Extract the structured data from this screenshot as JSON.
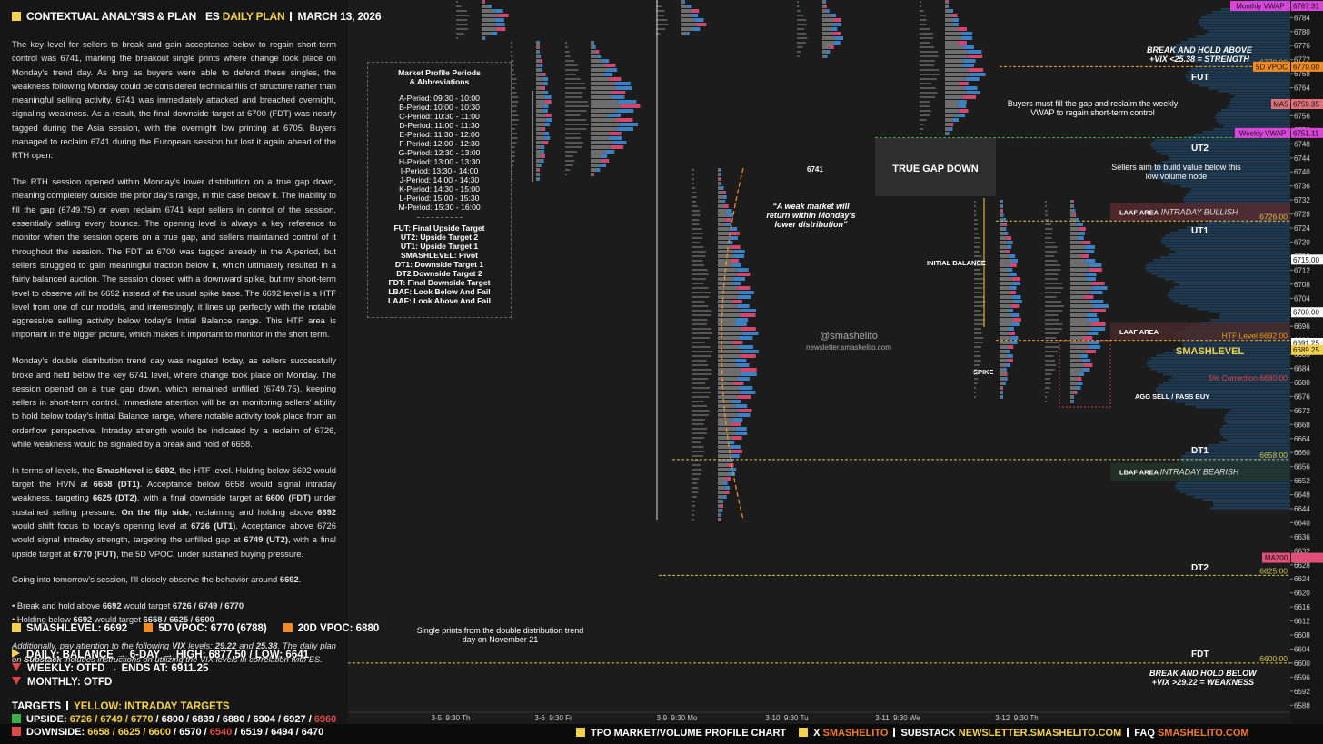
{
  "header": {
    "title": "CONTEXTUAL ANALYSIS & PLAN",
    "plan_prefix": "ES",
    "plan_label": "DAILY PLAN",
    "date": "MARCH 13, 2026"
  },
  "analysis": {
    "paragraphs": [
      [
        {
          "t": "The key level for sellers to break and gain acceptance below to regain short-term control was 6741, marking the breakout single prints where change took place on Monday's trend day. As long as buyers were able to defend these singles, the weakness following Monday could be considered technical fills of structure rather than meaningful selling activity. 6741 was immediately attacked and breached overnight, signaling weakness. As a result, the final downside target at 6700 (FDT) was nearly tagged during the Asia session, with the overnight low printing at 6705. Buyers managed to reclaim 6741 during the European session but lost it again ahead of the RTH open."
        }
      ],
      [
        {
          "t": "The RTH session opened within Monday's lower distribution on a true gap down, meaning completely outside the prior day's range, in this case below it. The inability to fill the gap (6749.75) or even reclaim 6741 kept sellers in control of the session, essentially selling every bounce. The opening level is always a key reference to monitor when the session opens on a true gap, and sellers maintained control of it throughout the session. The FDT at 6700 was tagged already in the A-period, but sellers struggled to gain meaningful traction below it, which ultimately resulted in a fairly balanced auction. The session closed with a downward spike, but my short-term level to observe will be 6692 instead of the usual spike base. The 6692 level is a HTF level from one of our models, and interestingly, it lines up perfectly with the notable aggressive selling activity below today's Initial Balance range. This HTF area is important in the bigger picture, which makes it important to monitor in the short term."
        }
      ],
      [
        {
          "t": "Monday's double distribution trend day was negated today, as sellers successfully broke and held below the key 6741 level, where change took place on Monday. The session opened on a true gap down, which remained unfilled (6749.75), keeping sellers in short-term control. Immediate attention will be on monitoring sellers' ability to hold below today's Initial Balance range, where notable activity took place from an orderflow perspective. Intraday strength would be indicated by a reclaim of 6726, while weakness would be signaled by a break and hold of 6658."
        }
      ],
      [
        {
          "t": "In terms of levels, the "
        },
        {
          "t": "Smashlevel",
          "b": true
        },
        {
          "t": " is "
        },
        {
          "t": "6692",
          "b": true
        },
        {
          "t": ", the HTF level. Holding below 6692 would target the HVN at "
        },
        {
          "t": "6658 (DT1)",
          "b": true
        },
        {
          "t": ". Acceptance below 6658 would signal intraday weakness, targeting "
        },
        {
          "t": "6625 (DT2)",
          "b": true
        },
        {
          "t": ", with a final downside target at "
        },
        {
          "t": "6600 (FDT)",
          "b": true
        },
        {
          "t": " under sustained selling pressure. "
        },
        {
          "t": "On the flip side",
          "b": true
        },
        {
          "t": ", reclaiming and holding above "
        },
        {
          "t": "6692",
          "b": true
        },
        {
          "t": " would shift focus to today's opening level at "
        },
        {
          "t": "6726 (UT1)",
          "b": true
        },
        {
          "t": ". Acceptance above 6726 would signal intraday strength, targeting the unfilled gap at "
        },
        {
          "t": "6749 (UT2)",
          "b": true
        },
        {
          "t": ", with a final upside target at "
        },
        {
          "t": "6770 (FUT)",
          "b": true
        },
        {
          "t": ", the 5D VPOC, under sustained buying pressure."
        }
      ],
      [
        {
          "t": "Going into tomorrow's session, I'll closely observe the behavior around "
        },
        {
          "t": "6692",
          "b": true
        },
        {
          "t": "."
        }
      ]
    ],
    "bullets": [
      [
        {
          "t": "• Break and hold above "
        },
        {
          "t": "6692",
          "b": true
        },
        {
          "t": " would target "
        },
        {
          "t": "6726 / 6749 / 6770",
          "b": true
        }
      ],
      [
        {
          "t": "• Holding below "
        },
        {
          "t": "6692",
          "b": true
        },
        {
          "t": " would target "
        },
        {
          "t": "6658 / 6625 / 6600",
          "b": true
        }
      ]
    ],
    "note": [
      {
        "t": "Additionally, pay attention to the following "
      },
      {
        "t": "VIX",
        "b": true
      },
      {
        "t": " levels: "
      },
      {
        "t": "29.22",
        "b": true
      },
      {
        "t": " and "
      },
      {
        "t": "25.38",
        "b": true
      },
      {
        "t": ". The daily plan on "
      },
      {
        "t": "Substack",
        "b": true
      },
      {
        "t": " includes instructions on utilizing the VIX levels in correlation with ES."
      }
    ]
  },
  "summary": {
    "levels": [
      {
        "t": "SMASHLEVEL: 6692",
        "c": "#f5d24a"
      },
      {
        "t": "5D VPOC: 6770 (6788)",
        "c": "#f08a24"
      },
      {
        "t": "20D VPOC: 6880",
        "c": "#f08a24"
      }
    ],
    "trend": [
      {
        "t": "DAILY: BALANCE → 6-DAY → HIGH: 6877.50 / LOW: 6641",
        "c": "#f5d24a"
      },
      {
        "t": "WEEKLY: OTFD → ENDS AT: 6911.25",
        "c": "#e04848"
      },
      {
        "t": "MONTHLY: OTFD",
        "c": "#e04848"
      }
    ],
    "targets_title": "TARGETS",
    "targets_note": "YELLOW: INTRADAY TARGETS",
    "upside": {
      "label": "UPSIDE:",
      "color": "#3fae49",
      "parts": [
        {
          "t": "6726 / 6749 / 6770",
          "c": "#f5d24a"
        },
        {
          "t": " / 6800 / 6839 / 6880 / 6904 / 6927 / ",
          "c": "#ffffff"
        },
        {
          "t": "6960",
          "c": "#e04848"
        }
      ]
    },
    "downside": {
      "label": "DOWNSIDE:",
      "color": "#e04848",
      "parts": [
        {
          "t": "6658 / 6625 / 6600",
          "c": "#f5d24a"
        },
        {
          "t": " / 6570 / ",
          "c": "#ffffff"
        },
        {
          "t": "6540",
          "c": "#e04848"
        },
        {
          "t": " / 6519 / 6494 / 6470",
          "c": "#ffffff"
        }
      ]
    }
  },
  "legend": {
    "title": [
      "Market Profile Periods",
      "& Abbreviations"
    ],
    "periods": [
      "A-Period: 09:30 - 10:00",
      "B-Period: 10:00 - 10:30",
      "C-Period: 10:30 - 11:00",
      "D-Period: 11:00 - 11:30",
      "E-Period: 11:30 - 12:00",
      "F-Period: 12:00 - 12:30",
      "G-Period: 12:30 - 13:00",
      "H-Period: 13:00 - 13:30",
      "I-Period: 13:30 - 14:00",
      "J-Period: 14:00 - 14:30",
      "K-Period: 14:30 - 15:00",
      "L-Period: 15:00 - 15:30",
      "M-Period: 15:30 - 16:00"
    ],
    "abbreviations": [
      "FUT: Final Upside Target",
      "UT2: Upside Target 2",
      "UT1: Upside Target 1",
      "SMASHLEVEL: Pivot",
      "DT1: Downside Target 1",
      "DT2 Downside Target 2",
      "FDT: Final Downside Target",
      "LBAF: Look Below And Fail",
      "LAAF: Look Above And Fail"
    ]
  },
  "chart": {
    "ylim": [
      6586,
      6789
    ],
    "yticks": [
      6588,
      6592,
      6596,
      6600,
      6604,
      6608,
      6612,
      6616,
      6620,
      6624,
      6628,
      6632,
      6636,
      6640,
      6644,
      6648,
      6652,
      6656,
      6660,
      6664,
      6668,
      6672,
      6676,
      6680,
      6684,
      6688,
      6692,
      6696,
      6700,
      6704,
      6708,
      6712,
      6716,
      6720,
      6724,
      6728,
      6732,
      6736,
      6740,
      6744,
      6748,
      6752,
      6756,
      6760,
      6764,
      6768,
      6772,
      6776,
      6780,
      6784
    ],
    "dates": [
      "3-5  9:30 Th",
      "3-6  9:30 Fr",
      "3-9  9:30 Mo",
      "3-10  9:30 Tu",
      "3-11  9:30 We",
      "3-12  9:30 Th"
    ],
    "levels": [
      {
        "value": 6770,
        "label": "6770.00",
        "color": "#f0a020"
      },
      {
        "name": "Gap",
        "value": 6749.75,
        "color": "#4caf50"
      },
      {
        "value": 6726,
        "label": "6726.00",
        "color": "#d4c24a"
      },
      {
        "name": "HTF Level",
        "value": 6692,
        "label": "6692.00",
        "color": "#e8a020"
      },
      {
        "name": "5% Correction",
        "value": 6680,
        "label": "6680.00",
        "color": "#e04848"
      },
      {
        "value": 6658,
        "label": "6658.00",
        "color": "#d4c24a"
      },
      {
        "value": 6625,
        "label": "6625.00",
        "color": "#d4c24a"
      },
      {
        "value": 6600,
        "label": "6600.00",
        "color": "#d4c24a"
      }
    ],
    "badges": [
      {
        "name": "Monthly VWAP",
        "value": 6787.31,
        "color": "#d946d9"
      },
      {
        "name": "5D VPOC",
        "value": 6770,
        "label": "6770.00",
        "color": "#f08a24"
      },
      {
        "name": "MA5",
        "value": 6759.35,
        "color": "#e0707a"
      },
      {
        "name": "Weekly VWAP",
        "value": 6751.11,
        "color": "#d946d9"
      },
      {
        "value": 6715,
        "label": "6715.00",
        "color": "#ffffff"
      },
      {
        "value": 6700,
        "label": "6700.00",
        "color": "#ffffff"
      },
      {
        "value": 6691.25,
        "color": "#ffffff"
      },
      {
        "value": 6689.25,
        "color": "#f5d24a"
      },
      {
        "name": "MA200",
        "value": 6630,
        "color": "#e0507a"
      }
    ],
    "zones": [
      {
        "name": "LAAF AREA",
        "tag": "INTRADAY BULLISH",
        "from": 6726,
        "to": 6731,
        "color": "#5a2a2e"
      },
      {
        "name": "LAAF AREA",
        "tag": "",
        "from": 6692,
        "to": 6697,
        "color": "#4a2a2a"
      },
      {
        "name": "LBAF AREA",
        "tag": "INTRADAY BEARISH",
        "from": 6652,
        "to": 6657,
        "color": "#23362a"
      }
    ],
    "annotations": {
      "break_above": "BREAK AND HOLD ABOVE",
      "vix_strength": "+VIX <25.38 = STRENGTH",
      "fut": "FUT",
      "buyers": "Buyers must fill the gap and reclaim the weekly VWAP to regain short-term control",
      "ut2": "UT2",
      "gap": "TRUE GAP DOWN",
      "l6741": "6741",
      "weak": "“A weak market will return within Monday's lower distribution”",
      "sellers": "Sellers aim to build value below this low volume node",
      "ut1": "UT1",
      "ib": "INITIAL BALANCE",
      "smash": "SMASHLEVEL",
      "spike": "SPIKE",
      "agg": "AGG SELL / PASS BUY",
      "dt1": "DT1",
      "dt2": "DT2",
      "fdt": "FDT",
      "break_below": "BREAK AND HOLD BELOW",
      "vix_weak": "+VIX >29.22 = WEAKNESS",
      "single": "Single prints from the double distribution trend day on November 21"
    },
    "watermark": [
      "@smashelito",
      "newsletter.smashelito.com"
    ]
  },
  "footer": {
    "chart_label": "TPO MARKET/VOLUME PROFILE CHART",
    "x": "X",
    "x_handle": "SMASHELITO",
    "substack": "SUBSTACK",
    "substack_url": "NEWSLETTER.SMASHELITO.COM",
    "faq": "FAQ",
    "faq_url": "SMASHELITO.COM"
  }
}
